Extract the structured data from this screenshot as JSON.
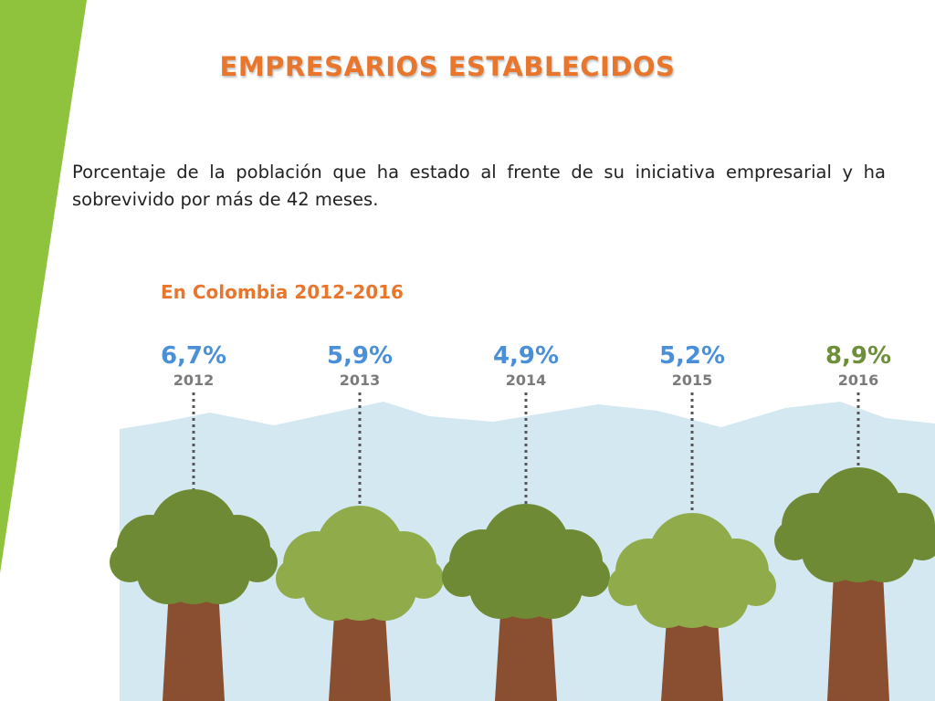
{
  "slide": {
    "title": "EMPRESARIOS ESTABLECIDOS",
    "description": "Porcentaje de la población que ha estado al frente de su iniciativa empresarial y ha sobrevivido por más de 42 meses."
  },
  "colors": {
    "title": "#e8762d",
    "accent_green": "#8fc33e",
    "chart_subtitle": "#e8762d",
    "value_blue": "#4a90d9",
    "value_green": "#6e8f3a",
    "year_gray": "#7b7b7b",
    "sky": "#d4e8f2",
    "trunk": "#8a4f30",
    "canopy_dark": "#6f8a35",
    "canopy_light": "#8fab4a"
  },
  "chart_data": {
    "type": "bar",
    "title": "En Colombia 2012-2016",
    "categories": [
      "2012",
      "2013",
      "2014",
      "2015",
      "2016"
    ],
    "values": [
      6.7,
      5.9,
      4.9,
      5.2,
      8.9
    ],
    "value_labels": [
      "6,7%",
      "5,9%",
      "4,9%",
      "5,2%",
      "8,9%"
    ],
    "unit": "%",
    "highlight_category": "2016",
    "grid": false,
    "legend": "none"
  }
}
